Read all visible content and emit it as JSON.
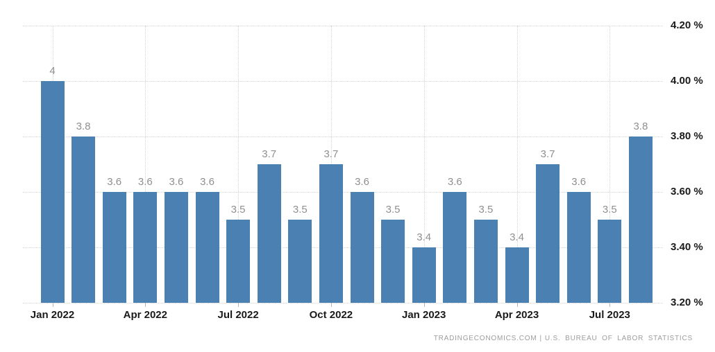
{
  "chart_data": {
    "type": "bar",
    "values": [
      4,
      3.8,
      3.6,
      3.6,
      3.6,
      3.6,
      3.5,
      3.7,
      3.5,
      3.7,
      3.6,
      3.5,
      3.4,
      3.6,
      3.5,
      3.4,
      3.7,
      3.6,
      3.5,
      3.8
    ],
    "bar_value_labels": [
      "4",
      "3.8",
      "3.6",
      "3.6",
      "3.6",
      "3.6",
      "3.5",
      "3.7",
      "3.5",
      "3.7",
      "3.6",
      "3.5",
      "3.4",
      "3.6",
      "3.5",
      "3.4",
      "3.7",
      "3.6",
      "3.5",
      "3.8"
    ],
    "x_tick_labels": [
      "Jan 2022",
      "Apr 2022",
      "Jul 2022",
      "Oct 2022",
      "Jan 2023",
      "Apr 2023",
      "Jul 2023"
    ],
    "x_tick_bar_indices": [
      0,
      3,
      6,
      9,
      12,
      15,
      18
    ],
    "y_tick_labels": [
      "4.20 %",
      "4.00 %",
      "3.80 %",
      "3.60 %",
      "3.40 %",
      "3.20 %"
    ],
    "y_tick_values": [
      4.2,
      4.0,
      3.8,
      3.6,
      3.4,
      3.2
    ],
    "ylim": [
      3.2,
      4.2
    ],
    "grid": true,
    "legend_position": "none",
    "bar_color": "#4a80b2",
    "value_label_color": "#8f8f8f",
    "axis_label_color": "#1a1a1a",
    "grid_color": "#d4d4d4"
  },
  "attribution": {
    "site": "TRADINGECONOMICS.COM",
    "separator": "|",
    "source": "U.S. BUREAU OF LABOR STATISTICS"
  }
}
